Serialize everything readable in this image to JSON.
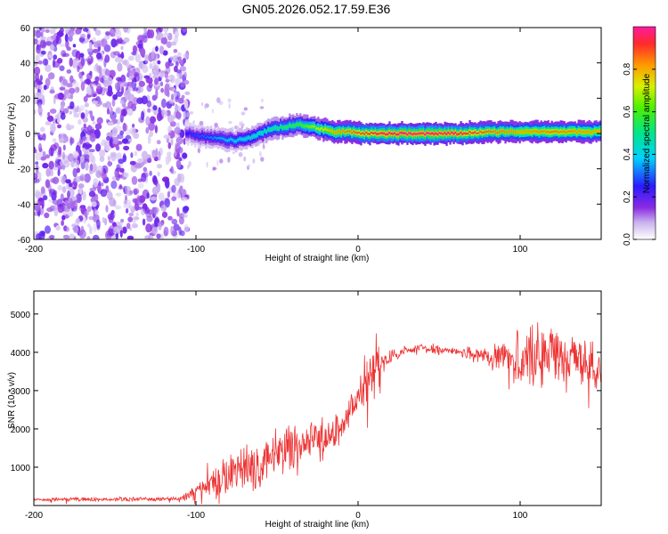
{
  "title": "GN05.2026.052.17.59.E36",
  "chart_data": [
    {
      "type": "heatmap",
      "name": "spectrogram",
      "xlabel": "Height of straight line (km)",
      "ylabel": "Frequency (Hz)",
      "xlim": [
        -200,
        150
      ],
      "ylim": [
        -60,
        60
      ],
      "xticks": [
        "-200",
        "-100",
        "0",
        "100"
      ],
      "xtick_values": [
        -200,
        -100,
        0,
        100
      ],
      "yticks": [
        "60",
        "40",
        "20",
        "0",
        "-20",
        "-40",
        "-60"
      ],
      "ytick_values": [
        60,
        40,
        20,
        0,
        -20,
        -40,
        -60
      ],
      "colorbar": {
        "label": "Normalized spectral amplitude",
        "range": [
          0,
          1
        ],
        "ticks": [
          "0.0",
          "0.2",
          "0.4",
          "0.6",
          "0.8"
        ],
        "tick_values": [
          0.0,
          0.2,
          0.4,
          0.6,
          0.8
        ]
      },
      "noise_region": [
        -200,
        -105
      ],
      "ridge": {
        "x": [
          -105,
          -95,
          -85,
          -75,
          -65,
          -55,
          -45,
          -35,
          -25,
          -15,
          -5,
          5,
          15,
          25,
          40,
          60,
          80,
          100,
          120,
          150
        ],
        "freq": [
          0,
          -2,
          -3,
          -4,
          -2,
          2,
          4,
          5,
          3,
          1,
          1,
          0,
          0,
          0,
          0,
          0,
          1,
          1,
          1,
          1
        ],
        "amplitude": [
          0.25,
          0.3,
          0.35,
          0.4,
          0.45,
          0.5,
          0.55,
          0.6,
          0.7,
          0.8,
          0.85,
          0.9,
          0.95,
          0.97,
          0.97,
          0.95,
          0.85,
          0.8,
          0.85,
          0.8
        ]
      }
    },
    {
      "type": "line",
      "name": "snr",
      "xlabel": "Height of straight line (km)",
      "ylabel": "SNR (10 * v/v)",
      "xlim": [
        -200,
        150
      ],
      "ylim": [
        0,
        5600
      ],
      "xticks": [
        "-200",
        "-100",
        "0",
        "100"
      ],
      "xtick_values": [
        -200,
        -100,
        0,
        100
      ],
      "yticks": [
        "1000",
        "2000",
        "3000",
        "4000",
        "5000"
      ],
      "ytick_values": [
        1000,
        2000,
        3000,
        4000,
        5000
      ],
      "color": "#ee3333",
      "envelope": {
        "x": [
          -200,
          -110,
          -100,
          -90,
          -80,
          -70,
          -60,
          -50,
          -40,
          -30,
          -20,
          -10,
          -5,
          0,
          5,
          10,
          15,
          20,
          30,
          40,
          60,
          80,
          90,
          100,
          110,
          120,
          130,
          140,
          150
        ],
        "y": [
          150,
          170,
          350,
          600,
          800,
          1000,
          1150,
          1300,
          1500,
          1650,
          1750,
          2000,
          2400,
          2900,
          3300,
          3500,
          3700,
          3900,
          4050,
          4100,
          4050,
          3900,
          3850,
          3850,
          3900,
          3950,
          3850,
          3800,
          3700
        ],
        "noise": [
          60,
          60,
          250,
          450,
          650,
          750,
          800,
          750,
          700,
          650,
          600,
          500,
          500,
          500,
          1400,
          1100,
          300,
          200,
          150,
          150,
          150,
          250,
          600,
          800,
          1100,
          1000,
          800,
          700,
          800
        ]
      }
    }
  ]
}
